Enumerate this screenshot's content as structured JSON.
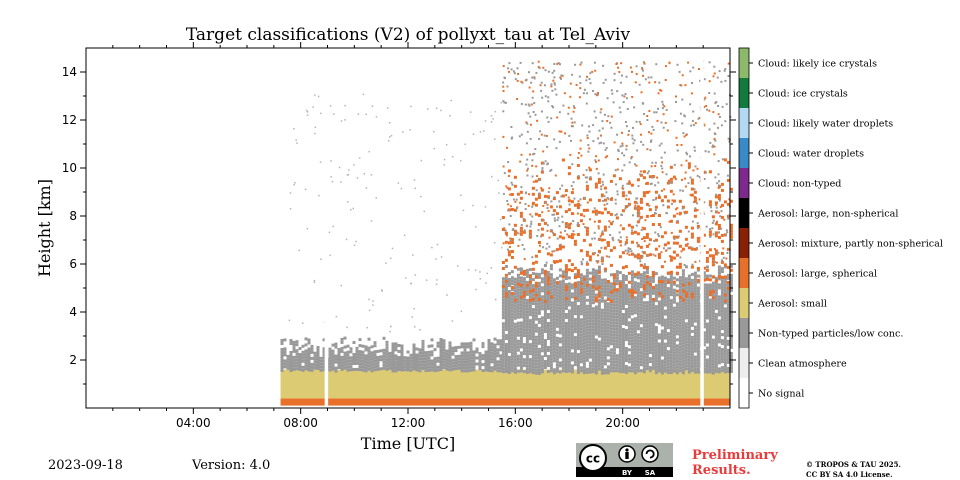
{
  "header": {
    "date": "2023-09-18",
    "version": "Version: 4.0",
    "preliminary_line1": "Preliminary",
    "preliminary_line2": "Results.",
    "copyright_line1": "© TROPOS & TAU 2025.",
    "copyright_line2": "CC BY SA 4.0 License.",
    "license_badge": {
      "cc": "cc",
      "by": "BY",
      "sa": "SA"
    }
  },
  "chart_data": {
    "type": "heatmap",
    "title": "Target classifications (V2) of pollyxt_tau at Tel_Aviv",
    "xlabel": "Time [UTC]",
    "ylabel": "Height [km]",
    "xlim_hours": [
      0,
      24
    ],
    "ylim_km": [
      0,
      15
    ],
    "x_ticks": [
      {
        "hour": 4,
        "label": "04:00"
      },
      {
        "hour": 8,
        "label": "08:00"
      },
      {
        "hour": 12,
        "label": "12:00"
      },
      {
        "hour": 16,
        "label": "16:00"
      },
      {
        "hour": 20,
        "label": "20:00"
      }
    ],
    "y_ticks": [
      {
        "value": 2,
        "label": "2"
      },
      {
        "value": 4,
        "label": "4"
      },
      {
        "value": 6,
        "label": "6"
      },
      {
        "value": 8,
        "label": "8"
      },
      {
        "value": 10,
        "label": "10"
      },
      {
        "value": 12,
        "label": "12"
      },
      {
        "value": 14,
        "label": "14"
      }
    ],
    "legend_placement": "right colorbar",
    "classes": [
      {
        "name": "Cloud: likely ice crystals",
        "color": "#8cb96a"
      },
      {
        "name": "Cloud: ice crystals",
        "color": "#127a3c"
      },
      {
        "name": "Cloud: likely water droplets",
        "color": "#b3d9f2"
      },
      {
        "name": "Cloud: water droplets",
        "color": "#3a8ac8"
      },
      {
        "name": "Cloud: non-typed",
        "color": "#7e2a8c"
      },
      {
        "name": "Aerosol: large, non-spherical",
        "color": "#000000"
      },
      {
        "name": "Aerosol: mixture, partly non-spherical",
        "color": "#8a2104"
      },
      {
        "name": "Aerosol: large, spherical",
        "color": "#e8702b"
      },
      {
        "name": "Aerosol: small",
        "color": "#ddcb73"
      },
      {
        "name": "Non-typed particles/low conc.",
        "color": "#999999"
      },
      {
        "name": "Clean atmosphere",
        "color": "#eeeeee"
      },
      {
        "name": "No signal",
        "color": "#ffffff"
      }
    ],
    "measurement_start_hour": 7.25,
    "measurement_end_hour": 24,
    "data_gaps_hours": [
      8.95,
      22.95
    ],
    "layers": [
      {
        "class": "Aerosol: large, spherical",
        "from_hour": 7.25,
        "to_hour": 24,
        "bottom_km": 0.1,
        "top_km": 0.4
      },
      {
        "class": "Aerosol: small",
        "from_hour": 7.25,
        "to_hour": 24,
        "bottom_km": 0.4,
        "top_km": 1.6
      },
      {
        "class": "Non-typed particles/low conc.",
        "from_hour": 7.25,
        "to_hour": 15.5,
        "bottom_km": 1.6,
        "top_km": 3.0
      },
      {
        "class": "Non-typed particles/low conc.",
        "from_hour": 15.5,
        "to_hour": 24,
        "bottom_km": 1.5,
        "top_km": 6.0
      },
      {
        "class": "Aerosol: large, spherical",
        "from_hour": 15.5,
        "to_hour": 24,
        "bottom_km": 4.5,
        "top_km": 10.5
      }
    ]
  }
}
